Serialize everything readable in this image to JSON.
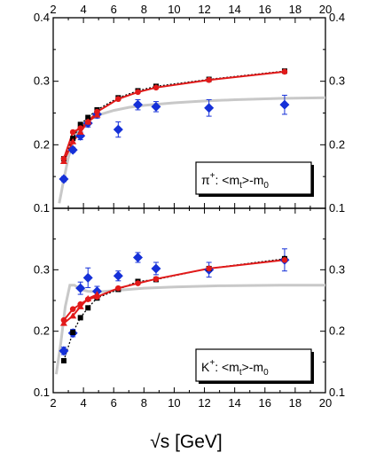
{
  "xlabel": "√s [GeV]",
  "colors": {
    "black": "#000000",
    "red": "#e21a1a",
    "blue": "#1530d8",
    "gray": "#c8c8c8"
  },
  "chart_data": [
    {
      "type": "scatter",
      "title": "",
      "label_text": "π",
      "label_sup": "+",
      "label_tail": ": <m",
      "label_sub": "t",
      "label_end": ">-m",
      "label_sub2": "0",
      "xlim": [
        2,
        20
      ],
      "ylim": [
        0.1,
        0.4
      ],
      "xticks": [
        2,
        4,
        6,
        8,
        10,
        12,
        14,
        16,
        18,
        20
      ],
      "yticks": [
        0.1,
        0.2,
        0.3,
        0.4
      ],
      "ytick_labels": [
        "0.1",
        "0.2",
        "0.3",
        "0.4"
      ],
      "series": [
        {
          "kind": "black-squares-dotted",
          "x": [
            2.7,
            3.3,
            3.8,
            4.3,
            4.9,
            6.3,
            7.6,
            8.8,
            12.3,
            17.3
          ],
          "y": [
            0.178,
            0.21,
            0.232,
            0.243,
            0.255,
            0.274,
            0.285,
            0.292,
            0.303,
            0.316
          ]
        },
        {
          "kind": "red-circles-line",
          "x": [
            2.7,
            3.3,
            3.8,
            4.3,
            4.9,
            6.3,
            7.6,
            8.8,
            12.3,
            17.3
          ],
          "y": [
            0.178,
            0.22,
            0.226,
            0.236,
            0.252,
            0.272,
            0.283,
            0.29,
            0.302,
            0.315
          ]
        },
        {
          "kind": "red-triangles-line",
          "x": [
            2.7,
            3.3,
            3.8,
            4.3,
            4.9
          ],
          "y": [
            0.174,
            0.205,
            0.22,
            0.236,
            0.247
          ]
        },
        {
          "kind": "blue-diamonds",
          "x": [
            2.7,
            3.3,
            3.8,
            4.3,
            4.9,
            6.3,
            7.6,
            8.8,
            12.3,
            17.3
          ],
          "y": [
            0.146,
            0.192,
            0.214,
            0.234,
            0.248,
            0.224,
            0.263,
            0.26,
            0.258,
            0.263
          ],
          "err": [
            0.004,
            0.004,
            0.006,
            0.006,
            0.006,
            0.012,
            0.008,
            0.008,
            0.013,
            0.015
          ]
        },
        {
          "kind": "gray-curve",
          "x": [
            2.4,
            2.7,
            3.0,
            3.3,
            3.6,
            4.0,
            4.5,
            5.0,
            6.0,
            7.0,
            8.0,
            10.0,
            12.0,
            14.0,
            17.0,
            20.0
          ],
          "y": [
            0.108,
            0.145,
            0.18,
            0.205,
            0.22,
            0.232,
            0.241,
            0.247,
            0.254,
            0.259,
            0.262,
            0.266,
            0.269,
            0.271,
            0.273,
            0.274
          ]
        }
      ]
    },
    {
      "type": "scatter",
      "title": "",
      "label_text": "K",
      "label_sup": "+",
      "label_tail": ": <m",
      "label_sub": "t",
      "label_end": ">-m",
      "label_sub2": "0",
      "xlim": [
        2,
        20
      ],
      "ylim": [
        0.1,
        0.4
      ],
      "xticks": [
        2,
        4,
        6,
        8,
        10,
        12,
        14,
        16,
        18,
        20
      ],
      "xtick_labels": [
        "2",
        "4",
        "6",
        "8",
        "10",
        "12",
        "14",
        "16",
        "18",
        "20"
      ],
      "yticks": [
        0.1,
        0.2,
        0.3
      ],
      "ytick_labels": [
        "0.1",
        "0.2",
        "0.3"
      ],
      "series": [
        {
          "kind": "black-squares-dotted",
          "x": [
            2.7,
            3.3,
            3.8,
            4.3,
            4.9,
            6.3,
            7.6,
            8.8,
            12.3,
            17.3
          ],
          "y": [
            0.152,
            0.198,
            0.222,
            0.238,
            0.254,
            0.268,
            0.281,
            0.284,
            0.302,
            0.318
          ]
        },
        {
          "kind": "red-circles-line",
          "x": [
            2.7,
            3.3,
            3.8,
            4.3,
            4.9,
            6.3,
            7.6,
            8.8,
            12.3,
            17.3
          ],
          "y": [
            0.218,
            0.236,
            0.244,
            0.252,
            0.256,
            0.27,
            0.278,
            0.285,
            0.302,
            0.316
          ]
        },
        {
          "kind": "red-triangles-line",
          "x": [
            2.7,
            3.3,
            3.8,
            4.3,
            4.9
          ],
          "y": [
            0.213,
            0.225,
            0.24,
            0.253,
            0.26
          ]
        },
        {
          "kind": "blue-diamonds",
          "x": [
            2.7,
            3.3,
            3.8,
            4.3,
            4.9,
            6.3,
            7.6,
            8.8,
            12.3,
            17.3
          ],
          "y": [
            0.168,
            0.197,
            0.27,
            0.287,
            0.265,
            0.29,
            0.32,
            0.302,
            0.3,
            0.316
          ],
          "err": [
            0.006,
            0.006,
            0.01,
            0.016,
            0.008,
            0.008,
            0.008,
            0.01,
            0.012,
            0.018
          ]
        },
        {
          "kind": "gray-curve",
          "x": [
            2.2,
            2.5,
            2.8,
            3.1,
            3.4,
            3.8,
            4.3,
            5.0,
            6.0,
            8.0,
            10.0,
            13.0,
            17.0,
            20.0
          ],
          "y": [
            0.13,
            0.18,
            0.24,
            0.275,
            0.275,
            0.268,
            0.265,
            0.264,
            0.266,
            0.27,
            0.272,
            0.274,
            0.275,
            0.275
          ]
        }
      ]
    }
  ]
}
